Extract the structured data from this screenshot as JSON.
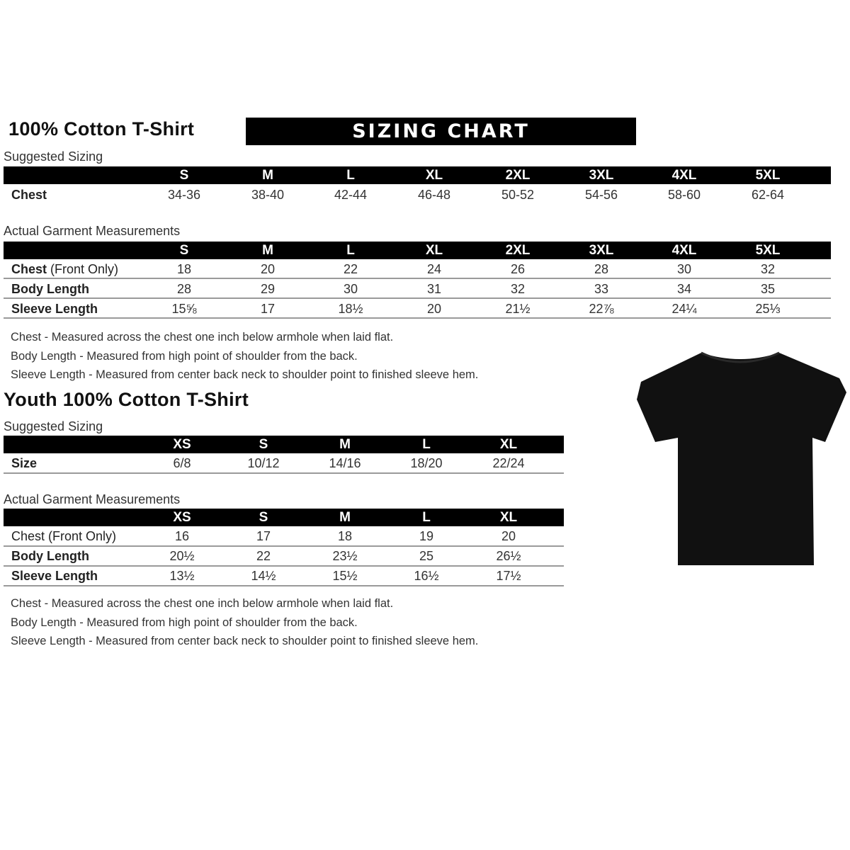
{
  "adult": {
    "title": "100% Cotton T-Shirt",
    "banner": "SIZING CHART",
    "suggested_label": "Suggested Sizing",
    "sizes": [
      "S",
      "M",
      "L",
      "XL",
      "2XL",
      "3XL",
      "4XL",
      "5XL"
    ],
    "suggested_rows": [
      {
        "label": "Chest",
        "values": [
          "34-36",
          "38-40",
          "42-44",
          "46-48",
          "50-52",
          "54-56",
          "58-60",
          "62-64"
        ]
      }
    ],
    "actual_label": "Actual Garment Measurements",
    "actual_rows": [
      {
        "label": "Chest",
        "label_suffix": " (Front Only)",
        "values": [
          "18",
          "20",
          "22",
          "24",
          "26",
          "28",
          "30",
          "32"
        ]
      },
      {
        "label": "Body Length",
        "values": [
          "28",
          "29",
          "30",
          "31",
          "32",
          "33",
          "34",
          "35"
        ]
      },
      {
        "label": "Sleeve Length",
        "values": [
          "15⅝",
          "17",
          "18½",
          "20",
          "21½",
          "22⅞",
          "24¼",
          "25⅓"
        ]
      }
    ],
    "notes": [
      "Chest - Measured across the chest one inch below armhole when laid flat.",
      "Body Length - Measured from high point of shoulder from the back.",
      "Sleeve Length - Measured from center back neck to shoulder point to finished sleeve hem."
    ]
  },
  "youth": {
    "title": "Youth 100% Cotton T-Shirt",
    "suggested_label": "Suggested Sizing",
    "sizes": [
      "XS",
      "S",
      "M",
      "L",
      "XL"
    ],
    "suggested_rows": [
      {
        "label": "Size",
        "values": [
          "6/8",
          "10/12",
          "14/16",
          "18/20",
          "22/24"
        ]
      }
    ],
    "actual_label": "Actual Garment Measurements",
    "actual_rows": [
      {
        "label": "Chest (Front Only)",
        "values": [
          "16",
          "17",
          "18",
          "19",
          "20"
        ]
      },
      {
        "label": "Body Length",
        "values": [
          "20½",
          "22",
          "23½",
          "25",
          "26½"
        ]
      },
      {
        "label": "Sleeve Length",
        "values": [
          "13½",
          "14½",
          "15½",
          "16½",
          "17½"
        ]
      }
    ],
    "notes": [
      "Chest - Measured across the chest one inch below armhole when laid flat.",
      "Body Length - Measured from high point of shoulder from the back.",
      "Sleeve Length - Measured from center back neck to shoulder point to finished sleeve hem."
    ]
  },
  "image": {
    "subject": "tshirt-icon",
    "color": "#111111"
  }
}
